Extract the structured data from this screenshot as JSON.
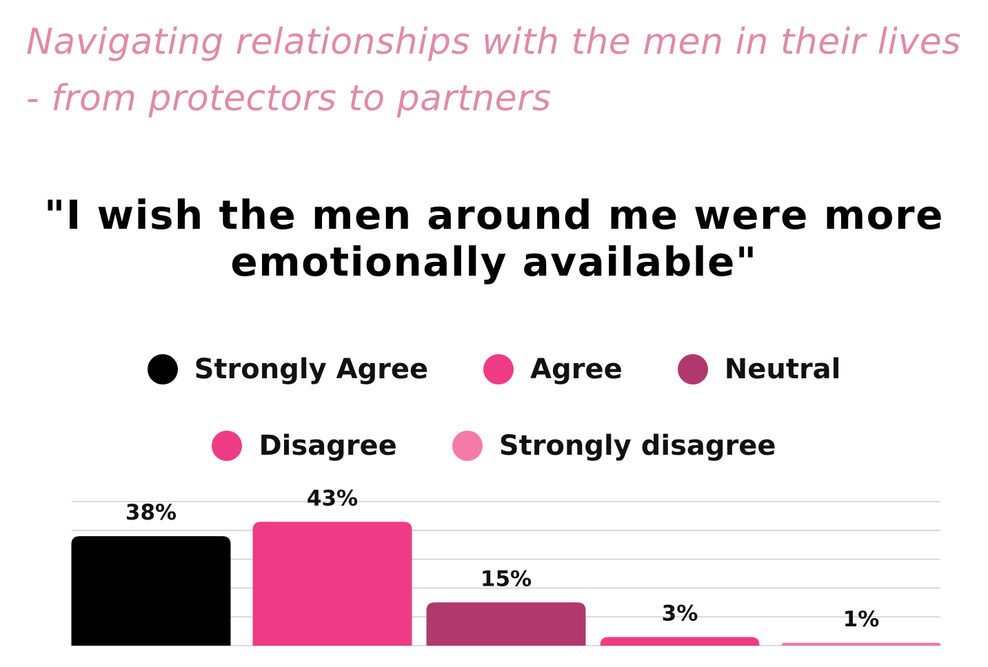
{
  "subtitle": {
    "line1": "Navigating relationships with the men in their lives",
    "line2": "- from protectors to partners"
  },
  "chart_data": {
    "type": "bar",
    "title_line1": "\"I wish the men around me were more",
    "title_line2": "emotionally available\"",
    "categories": [
      "Strongly Agree",
      "Agree",
      "Neutral",
      "Disagree",
      "Strongly disagree"
    ],
    "values": [
      38,
      43,
      15,
      3,
      1
    ],
    "value_labels": [
      "38%",
      "43%",
      "15%",
      "3%",
      "1%"
    ],
    "colors": [
      "#000000",
      "#ef3b85",
      "#b0386d",
      "#ef3b85",
      "#f47aaa"
    ],
    "ylim": [
      0,
      50
    ],
    "unit": "%",
    "grid": true,
    "legend_position": "top"
  }
}
